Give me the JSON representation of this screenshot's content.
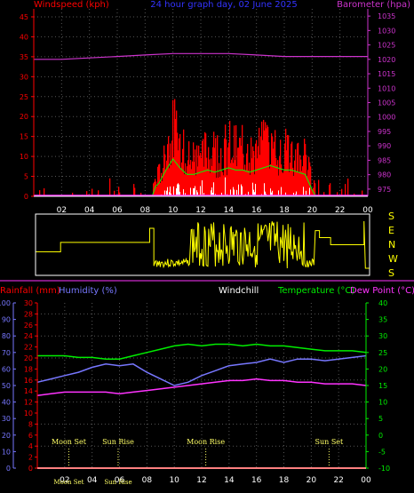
{
  "colors": {
    "windspeed": "#ff0000",
    "gust_line": "#00ff00",
    "barometer": "#cc33cc",
    "direction": "#ffff00",
    "rainfall": "#ff0000",
    "humidity": "#7777ff",
    "temperature": "#00ee00",
    "dewpoint": "#ff33ff",
    "windchill": "#ffffff",
    "axis": "#ffffff",
    "grid": "#555555"
  },
  "top_panel": {
    "title": "24 hour graph day, 02 June 2025",
    "left_label": "Windspeed (kph)",
    "right_label": "Barometer (hpa)"
  },
  "direction_panel": {
    "labels": [
      "S",
      "E",
      "N",
      "W",
      "S"
    ]
  },
  "bottom_panel": {
    "label_rainfall": "Rainfall (mm)",
    "label_humidity": "Humidity (%)",
    "label_windchill": "Windchill",
    "label_temperature": "Temperature (°C)",
    "label_dewpoint": "Dew Point (°C)",
    "events": [
      {
        "label": "Moon Set",
        "hour": 2.3
      },
      {
        "label": "Sun Rise",
        "hour": 5.9
      },
      {
        "label": "Moon Rise",
        "hour": 12.3
      },
      {
        "label": "Sun Set",
        "hour": 21.3
      }
    ],
    "event_tick_labels": [
      "Moon Set",
      "Sun Rise"
    ]
  },
  "chart_data": [
    {
      "type": "area",
      "title": "24 hour graph day, 02 June 2025",
      "x_ticks": [
        "02",
        "04",
        "06",
        "08",
        "10",
        "12",
        "14",
        "16",
        "18",
        "20",
        "22",
        "00"
      ],
      "y_left": {
        "label": "Windspeed (kph)",
        "ticks": [
          0,
          5,
          10,
          15,
          20,
          25,
          30,
          35,
          40,
          45
        ],
        "range": [
          0,
          47
        ]
      },
      "y_right": {
        "label": "Barometer (hpa)",
        "ticks": [
          975,
          980,
          985,
          990,
          995,
          1000,
          1005,
          1010,
          1015,
          1020,
          1025,
          1030,
          1035
        ],
        "range": [
          972.5,
          1037.5
        ]
      },
      "series": [
        {
          "name": "Windspeed (kph)",
          "axis": "left",
          "x": [
            0,
            0.5,
            1,
            1.5,
            2,
            2.5,
            3,
            3.5,
            4,
            4.5,
            5,
            5.5,
            6,
            6.5,
            7,
            7.5,
            8,
            8.5,
            9,
            9.5,
            10,
            10.5,
            11,
            11.5,
            12,
            12.5,
            13,
            13.5,
            14,
            14.5,
            15,
            15.5,
            16,
            16.5,
            17,
            17.5,
            18,
            18.5,
            19,
            19.5,
            20,
            20.5,
            21,
            21.5,
            22,
            22.5,
            23,
            23.5,
            24
          ],
          "values": [
            2,
            1,
            3,
            1,
            2,
            1,
            1,
            2,
            1,
            1,
            1,
            2,
            1,
            1,
            2,
            1,
            3,
            3,
            6,
            12,
            17,
            13,
            10,
            10,
            11,
            12,
            11,
            12,
            13,
            12,
            12,
            11,
            12,
            13,
            14,
            13,
            12,
            12,
            11,
            10,
            3,
            2,
            2,
            1,
            1,
            2,
            1,
            1,
            1
          ]
        },
        {
          "name": "Barometer (hpa)",
          "axis": "right",
          "x": [
            0,
            2,
            4,
            6,
            8,
            10,
            12,
            14,
            16,
            18,
            20,
            22,
            24
          ],
          "values": [
            1020,
            1020,
            1020.5,
            1021,
            1021.5,
            1022,
            1022,
            1022,
            1021.5,
            1021,
            1021,
            1021,
            1021
          ]
        }
      ]
    },
    {
      "type": "line",
      "x_ticks": [
        "02",
        "04",
        "06",
        "08",
        "10",
        "12",
        "14",
        "16",
        "18",
        "20",
        "22",
        "00"
      ],
      "y_left_outer": {
        "label": "Humidity (%)",
        "ticks": [
          0,
          10,
          20,
          30,
          40,
          50,
          60,
          70,
          80,
          90,
          100
        ],
        "range": [
          0,
          100
        ]
      },
      "y_left_inner": {
        "label": "Rainfall (mm)",
        "ticks": [
          0,
          2,
          4,
          6,
          8,
          10,
          12,
          14,
          16,
          18,
          20,
          22,
          24,
          26,
          28,
          30
        ],
        "range": [
          0,
          30
        ]
      },
      "y_right": {
        "label": "Temperature (°C)",
        "ticks": [
          -10,
          -5,
          0,
          5,
          10,
          15,
          20,
          25,
          30,
          35,
          40
        ],
        "range": [
          -10,
          40
        ]
      },
      "series": [
        {
          "name": "Humidity (%)",
          "axis": "left_outer",
          "x": [
            0,
            1,
            2,
            3,
            4,
            5,
            6,
            7,
            8,
            9,
            10,
            11,
            12,
            13,
            14,
            15,
            16,
            17,
            18,
            19,
            20,
            21,
            22,
            23,
            24
          ],
          "values": [
            52,
            54,
            56,
            58,
            61,
            63,
            62,
            63,
            58,
            54,
            50,
            52,
            56,
            59,
            62,
            63,
            64,
            66,
            64,
            66,
            66,
            65,
            66,
            67,
            68
          ]
        },
        {
          "name": "Temperature (°C)",
          "axis": "right",
          "x": [
            0,
            1,
            2,
            3,
            4,
            5,
            6,
            7,
            8,
            9,
            10,
            11,
            12,
            13,
            14,
            15,
            16,
            17,
            18,
            19,
            20,
            21,
            22,
            23,
            24
          ],
          "values": [
            24,
            24,
            24,
            23.5,
            23.5,
            23,
            23,
            24,
            25,
            26,
            27,
            27.5,
            27,
            27.5,
            27.5,
            27,
            27.5,
            27,
            27,
            26.5,
            26,
            25.5,
            25.5,
            25.5,
            25
          ]
        },
        {
          "name": "Dew Point (°C)",
          "axis": "right",
          "x": [
            0,
            1,
            2,
            3,
            4,
            5,
            6,
            7,
            8,
            9,
            10,
            11,
            12,
            13,
            14,
            15,
            16,
            17,
            18,
            19,
            20,
            21,
            22,
            23,
            24
          ],
          "values": [
            12,
            12.5,
            13,
            13,
            13,
            13,
            12.5,
            13,
            13.5,
            14,
            14.5,
            15,
            15.5,
            16,
            16.5,
            16.5,
            17,
            16.5,
            16.5,
            16,
            16,
            15.5,
            15.5,
            15.5,
            15
          ]
        },
        {
          "name": "Rainfall (mm)",
          "axis": "left_inner",
          "x": [
            0,
            24
          ],
          "values": [
            0,
            0
          ]
        }
      ]
    }
  ]
}
